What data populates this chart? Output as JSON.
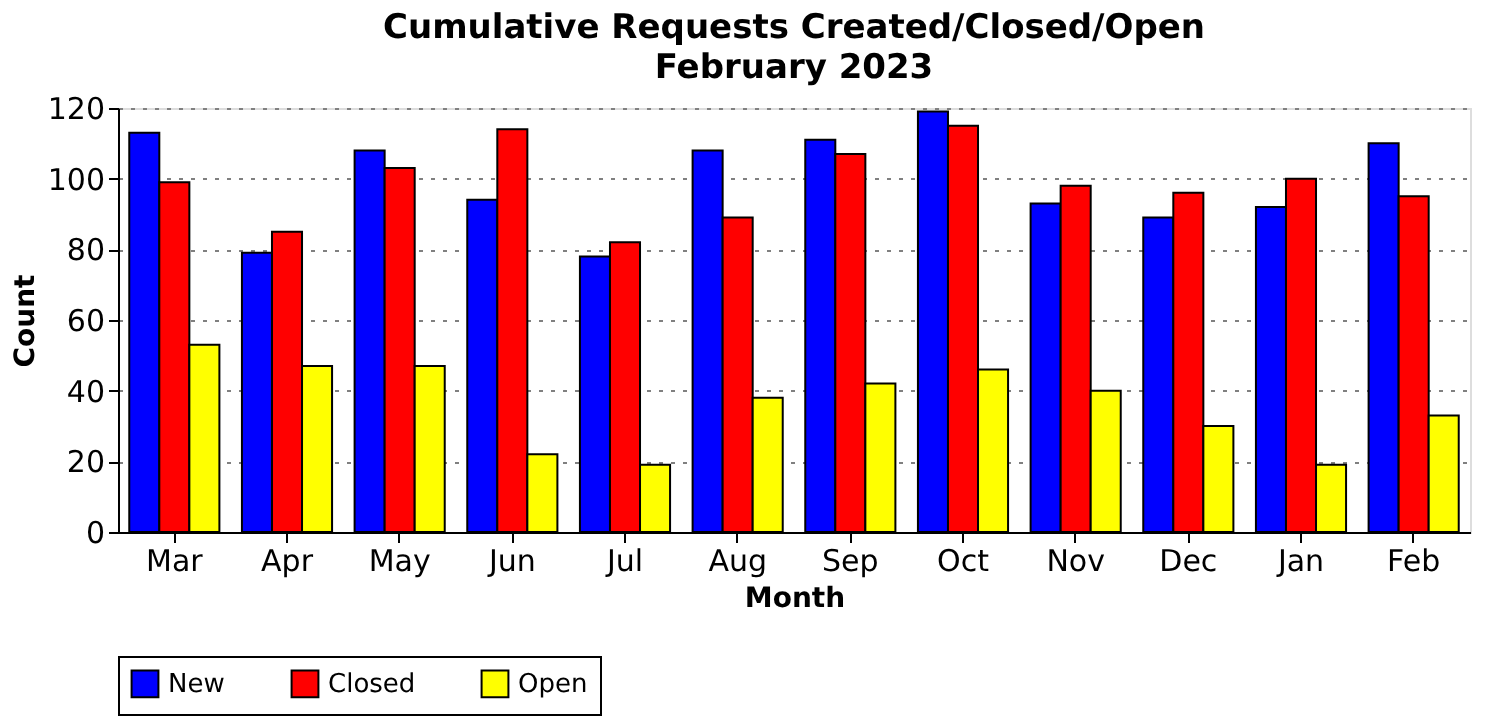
{
  "chart_data": {
    "type": "bar",
    "title": "Cumulative Requests Created/Closed/Open",
    "subtitle": "February 2023",
    "xlabel": "Month",
    "ylabel": "Count",
    "categories": [
      "Mar",
      "Apr",
      "May",
      "Jun",
      "Jul",
      "Aug",
      "Sep",
      "Oct",
      "Nov",
      "Dec",
      "Jan",
      "Feb"
    ],
    "series": [
      {
        "name": "New",
        "color": "#0000ff",
        "values": [
          113,
          79,
          108,
          94,
          78,
          108,
          111,
          119,
          93,
          89,
          92,
          110
        ]
      },
      {
        "name": "Closed",
        "color": "#ff0000",
        "values": [
          99,
          85,
          103,
          114,
          82,
          89,
          107,
          115,
          98,
          96,
          100,
          95
        ]
      },
      {
        "name": "Open",
        "color": "#ffff00",
        "values": [
          53,
          47,
          47,
          22,
          19,
          38,
          42,
          46,
          40,
          30,
          19,
          33
        ]
      }
    ],
    "ylim": [
      0,
      120
    ],
    "yticks": [
      0,
      20,
      40,
      60,
      80,
      100,
      120
    ],
    "grid": "y",
    "legend": "bottom"
  }
}
